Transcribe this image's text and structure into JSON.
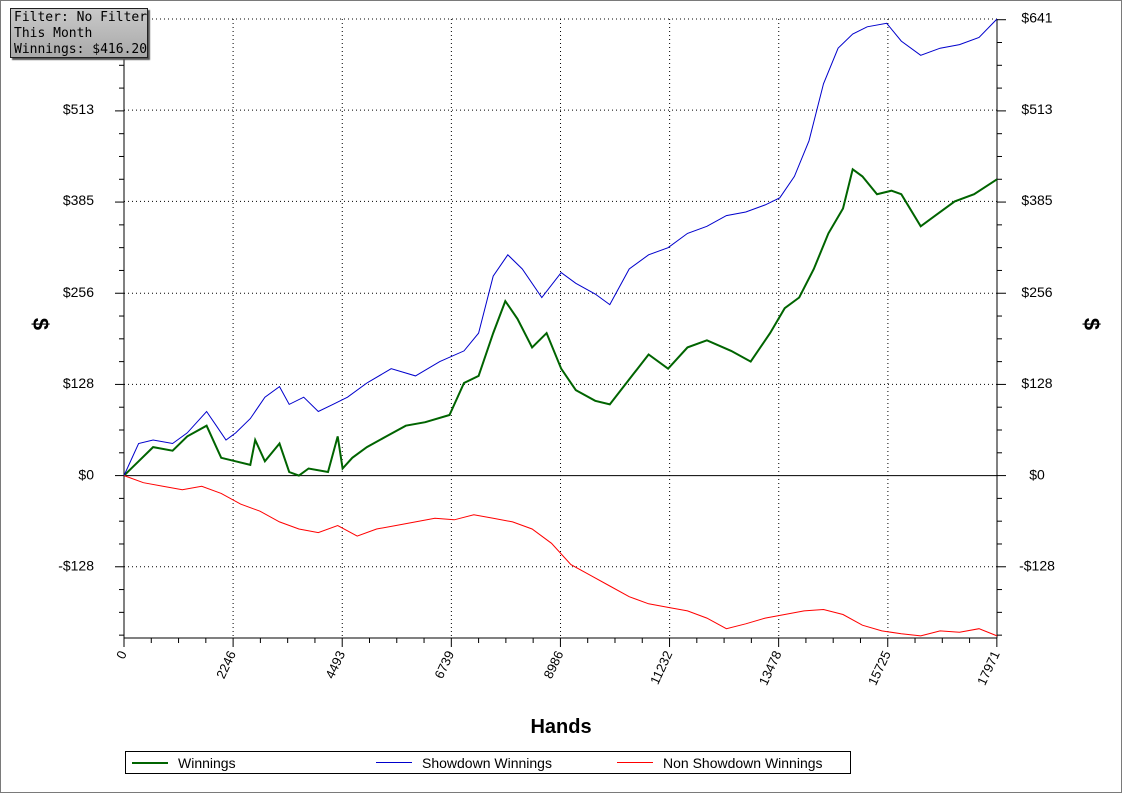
{
  "info": {
    "filter": "Filter: No Filter",
    "period": "This Month",
    "winnings": "Winnings: $416.20"
  },
  "chart_data": {
    "type": "line",
    "xlabel": "Hands",
    "ylabel_left": "$",
    "ylabel_right": "$",
    "xlim": [
      0,
      17971
    ],
    "ylim": [
      -228,
      641
    ],
    "x_ticks": [
      0,
      2246,
      4493,
      6739,
      8986,
      11232,
      13478,
      15725,
      17971
    ],
    "x_tick_labels": [
      "0",
      "2246",
      "4493",
      "6739",
      "8986",
      "11232",
      "13478",
      "15725",
      "17971"
    ],
    "y_ticks": [
      641,
      513,
      385,
      256,
      128,
      0,
      -128
    ],
    "y_tick_labels": [
      "$641",
      "$513",
      "$385",
      "$256",
      "$128",
      "$0",
      "-$128"
    ],
    "grid": true,
    "legend_position": "bottom",
    "series": [
      {
        "name": "Winnings",
        "color": "#006400",
        "x": [
          0,
          300,
          600,
          1000,
          1300,
          1700,
          1900,
          2000,
          2300,
          2600,
          2700,
          2900,
          3200,
          3400,
          3600,
          3800,
          4200,
          4400,
          4500,
          4700,
          5000,
          5400,
          5800,
          6200,
          6700,
          7000,
          7300,
          7600,
          7850,
          8100,
          8400,
          8700,
          9000,
          9300,
          9700,
          10000,
          10400,
          10800,
          11200,
          11600,
          12000,
          12500,
          12900,
          13300,
          13600,
          13900,
          14200,
          14500,
          14800,
          15000,
          15200,
          15500,
          15800,
          16000,
          16400,
          16700,
          17100,
          17500,
          17971
        ],
        "y": [
          0,
          20,
          40,
          35,
          55,
          70,
          40,
          25,
          20,
          15,
          50,
          20,
          45,
          5,
          0,
          10,
          5,
          55,
          10,
          25,
          40,
          55,
          70,
          75,
          85,
          130,
          140,
          200,
          245,
          220,
          180,
          200,
          150,
          120,
          105,
          100,
          135,
          170,
          150,
          180,
          190,
          175,
          160,
          200,
          235,
          250,
          290,
          340,
          375,
          430,
          420,
          395,
          400,
          395,
          350,
          365,
          385,
          395,
          416
        ]
      },
      {
        "name": "Showdown Winnings",
        "color": "#0000cc",
        "x": [
          0,
          300,
          600,
          1000,
          1300,
          1700,
          1900,
          2100,
          2300,
          2600,
          2900,
          3200,
          3400,
          3700,
          4000,
          4300,
          4600,
          5000,
          5500,
          6000,
          6500,
          7000,
          7300,
          7600,
          7900,
          8200,
          8600,
          9000,
          9300,
          9700,
          10000,
          10400,
          10800,
          11200,
          11600,
          12000,
          12400,
          12800,
          13200,
          13500,
          13800,
          14100,
          14400,
          14700,
          15000,
          15300,
          15700,
          16000,
          16400,
          16800,
          17200,
          17600,
          17971
        ],
        "y": [
          0,
          45,
          50,
          45,
          60,
          90,
          70,
          50,
          60,
          80,
          110,
          125,
          100,
          110,
          90,
          100,
          110,
          130,
          150,
          140,
          160,
          175,
          200,
          280,
          310,
          290,
          250,
          285,
          270,
          255,
          240,
          290,
          310,
          320,
          340,
          350,
          365,
          370,
          380,
          390,
          420,
          470,
          550,
          600,
          620,
          630,
          635,
          610,
          590,
          600,
          605,
          615,
          641
        ]
      },
      {
        "name": "Non Showdown Winnings",
        "color": "#ff0000",
        "x": [
          0,
          400,
          800,
          1200,
          1600,
          2000,
          2400,
          2800,
          3200,
          3600,
          4000,
          4400,
          4800,
          5200,
          5600,
          6000,
          6400,
          6800,
          7200,
          7600,
          8000,
          8400,
          8800,
          9200,
          9600,
          10000,
          10400,
          10800,
          11200,
          11600,
          12000,
          12400,
          12800,
          13200,
          13600,
          14000,
          14400,
          14800,
          15200,
          15600,
          16000,
          16400,
          16800,
          17200,
          17600,
          17971
        ],
        "y": [
          0,
          -10,
          -15,
          -20,
          -15,
          -25,
          -40,
          -50,
          -65,
          -75,
          -80,
          -70,
          -85,
          -75,
          -70,
          -65,
          -60,
          -62,
          -55,
          -60,
          -65,
          -75,
          -95,
          -125,
          -140,
          -155,
          -170,
          -180,
          -185,
          -190,
          -200,
          -215,
          -208,
          -200,
          -195,
          -190,
          -188,
          -195,
          -210,
          -218,
          -222,
          -225,
          -218,
          -220,
          -215,
          -225
        ]
      }
    ]
  }
}
